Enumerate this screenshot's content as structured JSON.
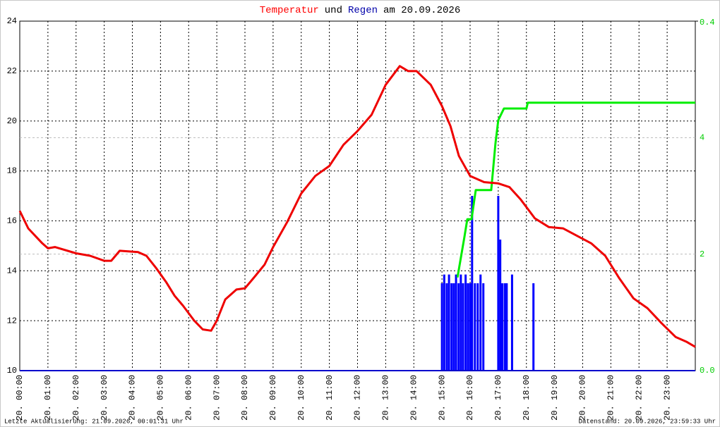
{
  "chart_data": {
    "type": "line",
    "title_parts": [
      {
        "text": "Temperatur",
        "color": "#ff0000"
      },
      {
        "text": "und",
        "color": "#000000"
      },
      {
        "text": "Regen",
        "color": "#0000aa"
      },
      {
        "text": "am 20.09.2026",
        "color": "#000000"
      }
    ],
    "xlim": [
      0,
      24
    ],
    "xticks": [
      {
        "value": 0,
        "label": "20. 00:00"
      },
      {
        "value": 1,
        "label": "20. 01:00"
      },
      {
        "value": 2,
        "label": "20. 02:00"
      },
      {
        "value": 3,
        "label": "20. 03:00"
      },
      {
        "value": 4,
        "label": "20. 04:00"
      },
      {
        "value": 5,
        "label": "20. 05:00"
      },
      {
        "value": 6,
        "label": "20. 06:00"
      },
      {
        "value": 7,
        "label": "20. 07:00"
      },
      {
        "value": 8,
        "label": "20. 08:00"
      },
      {
        "value": 9,
        "label": "20. 09:00"
      },
      {
        "value": 10,
        "label": "20. 10:00"
      },
      {
        "value": 11,
        "label": "20. 11:00"
      },
      {
        "value": 12,
        "label": "20. 12:00"
      },
      {
        "value": 13,
        "label": "20. 13:00"
      },
      {
        "value": 14,
        "label": "20. 14:00"
      },
      {
        "value": 15,
        "label": "20. 15:00"
      },
      {
        "value": 16,
        "label": "20. 16:00"
      },
      {
        "value": 17,
        "label": "20. 17:00"
      },
      {
        "value": 18,
        "label": "20. 18:00"
      },
      {
        "value": 19,
        "label": "20. 19:00"
      },
      {
        "value": 20,
        "label": "20. 20:00"
      },
      {
        "value": 21,
        "label": "20. 21:00"
      },
      {
        "value": 22,
        "label": "20. 22:00"
      },
      {
        "value": 23,
        "label": "20. 23:00"
      }
    ],
    "ylim": [
      10,
      24
    ],
    "yticks": [
      10,
      12,
      14,
      16,
      18,
      20,
      22,
      24
    ],
    "y2lim": [
      0,
      6
    ],
    "y2ticks": [
      {
        "value": 0,
        "label": "0.0"
      },
      2,
      4
    ],
    "y3lim": [
      0,
      0.4
    ],
    "y3ticks": [
      0.4
    ],
    "grid": true,
    "series": [
      {
        "type": "bar",
        "axis": "y3",
        "color": "#0000ff",
        "x": [
          15.0,
          15.08,
          15.17,
          15.25,
          15.34,
          15.42,
          15.5,
          15.59,
          15.67,
          15.75,
          15.84,
          15.92,
          16.0,
          16.07,
          16.17,
          16.27,
          16.37,
          16.47,
          17.0,
          17.07,
          17.14,
          17.23,
          17.3,
          17.49,
          18.25
        ],
        "values": [
          0.1,
          0.11,
          0.1,
          0.11,
          0.1,
          0.1,
          0.11,
          0.1,
          0.11,
          0.1,
          0.11,
          0.1,
          0.1,
          0.2,
          0.1,
          0.1,
          0.11,
          0.1,
          0.2,
          0.15,
          0.1,
          0.1,
          0.1,
          0.11,
          0.1
        ]
      },
      {
        "type": "line",
        "axis": "y2",
        "color": "#00ee00",
        "x": [
          15.55,
          15.8,
          15.9,
          16.05,
          16.2,
          16.75,
          16.9,
          17.0,
          17.2,
          18.0,
          18.05,
          24
        ],
        "values": [
          1.6,
          2.3,
          2.6,
          2.6,
          3.1,
          3.1,
          3.9,
          4.3,
          4.5,
          4.5,
          4.6,
          4.6
        ]
      },
      {
        "type": "line",
        "axis": "y",
        "color": "#ee0000",
        "x": [
          0,
          0.3,
          0.55,
          0.8,
          1.0,
          1.25,
          2.0,
          2.5,
          3.0,
          3.25,
          3.55,
          4.2,
          4.5,
          4.85,
          5.2,
          5.5,
          5.8,
          6.2,
          6.5,
          6.8,
          7.0,
          7.3,
          7.7,
          8.0,
          8.3,
          8.7,
          9.0,
          9.5,
          10.0,
          10.5,
          11.0,
          11.5,
          12.0,
          12.5,
          13.0,
          13.5,
          13.8,
          14.1,
          14.6,
          15.0,
          15.3,
          15.6,
          16.0,
          16.5,
          17.0,
          17.4,
          17.8,
          18.3,
          18.8,
          19.3,
          19.8,
          20.3,
          20.8,
          21.3,
          21.8,
          22.3,
          22.8,
          23.3,
          23.7,
          24
        ],
        "values": [
          16.4,
          15.7,
          15.4,
          15.1,
          14.9,
          14.95,
          14.7,
          14.6,
          14.4,
          14.4,
          14.8,
          14.75,
          14.6,
          14.1,
          13.55,
          13.0,
          12.6,
          12.0,
          11.65,
          11.6,
          12.0,
          12.85,
          13.25,
          13.3,
          13.7,
          14.25,
          14.95,
          15.95,
          17.1,
          17.8,
          18.2,
          19.05,
          19.6,
          20.25,
          21.45,
          22.2,
          22.0,
          22.0,
          21.45,
          20.6,
          19.8,
          18.6,
          17.8,
          17.55,
          17.5,
          17.35,
          16.85,
          16.1,
          15.75,
          15.7,
          15.4,
          15.1,
          14.6,
          13.7,
          12.9,
          12.5,
          11.9,
          11.35,
          11.15,
          10.95
        ]
      }
    ],
    "footer_left": "Letzte Aktualisierung: 21.09.2026, 00:01:31 Uhr",
    "footer_right": "Datenstand: 20.09.2026, 23:59:33 Uhr"
  }
}
